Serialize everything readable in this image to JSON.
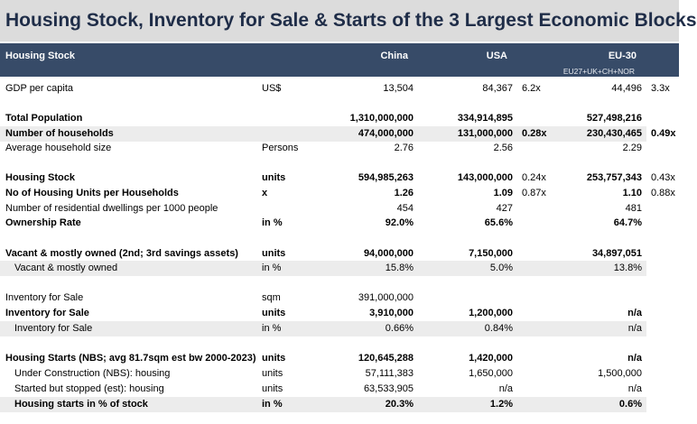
{
  "title": "Housing Stock, Inventory for Sale & Starts of the 3 Largest Economic Blocks",
  "header": {
    "label": "Housing Stock",
    "china": "China",
    "usa": "USA",
    "eu": "EU-30",
    "eu_sub": "EU27+UK+CH+NOR"
  },
  "rows": [
    {
      "label": "GDP per capita",
      "unit": "US$",
      "china": "13,504",
      "usa": "84,367",
      "usa_mult": "6.2x",
      "eu": "44,496",
      "eu_mult": "3.3x"
    },
    {
      "label": "Total Population",
      "unit": "",
      "china": "1,310,000,000",
      "usa": "334,914,895",
      "usa_mult": "",
      "eu": "527,498,216",
      "eu_mult": ""
    },
    {
      "label": "Number of households",
      "unit": "",
      "china": "474,000,000",
      "usa": "131,000,000",
      "usa_mult": "0.28x",
      "eu": "230,430,465",
      "eu_mult": "0.49x"
    },
    {
      "label": "Average household size",
      "unit": "Persons",
      "china": "2.76",
      "usa": "2.56",
      "usa_mult": "",
      "eu": "2.29",
      "eu_mult": ""
    },
    {
      "label": "Housing Stock",
      "unit": "units",
      "china": "594,985,263",
      "usa": "143,000,000",
      "usa_mult": "0.24x",
      "eu": "253,757,343",
      "eu_mult": "0.43x"
    },
    {
      "label": "No of Housing Units per Households",
      "unit": "x",
      "china": "1.26",
      "usa": "1.09",
      "usa_mult": "0.87x",
      "eu": "1.10",
      "eu_mult": "0.88x"
    },
    {
      "label": "Number of residential dwellings per 1000 people",
      "unit": "",
      "china": "454",
      "usa": "427",
      "usa_mult": "",
      "eu": "481",
      "eu_mult": ""
    },
    {
      "label": "Ownership Rate",
      "unit": "in %",
      "china": "92.0%",
      "usa": "65.6%",
      "usa_mult": "",
      "eu": "64.7%",
      "eu_mult": ""
    },
    {
      "label": "Vacant & mostly owned (2nd; 3rd savings assets)",
      "unit": "units",
      "china": "94,000,000",
      "usa": "7,150,000",
      "usa_mult": "",
      "eu": "34,897,051",
      "eu_mult": ""
    },
    {
      "label": "Vacant & mostly owned",
      "unit": "in %",
      "china": "15.8%",
      "usa": "5.0%",
      "usa_mult": "",
      "eu": "13.8%",
      "eu_mult": ""
    },
    {
      "label": "Inventory for Sale",
      "unit": "sqm",
      "china": "391,000,000",
      "usa": "",
      "usa_mult": "",
      "eu": "",
      "eu_mult": ""
    },
    {
      "label": "Inventory for Sale",
      "unit": "units",
      "china": "3,910,000",
      "usa": "1,200,000",
      "usa_mult": "",
      "eu": "n/a",
      "eu_mult": ""
    },
    {
      "label": "Inventory for Sale",
      "unit": "in %",
      "china": "0.66%",
      "usa": "0.84%",
      "usa_mult": "",
      "eu": "n/a",
      "eu_mult": ""
    },
    {
      "label": "Housing Starts (NBS; avg 81.7sqm est bw 2000-2023)",
      "unit": "units",
      "china": "120,645,288",
      "usa": "1,420,000",
      "usa_mult": "",
      "eu": "n/a",
      "eu_mult": ""
    },
    {
      "label": "Under Construction (NBS): housing",
      "unit": "units",
      "china": "57,111,383",
      "usa": "1,650,000",
      "usa_mult": "",
      "eu": "1,500,000",
      "eu_mult": ""
    },
    {
      "label": "Started but stopped (est): housing",
      "unit": "units",
      "china": "63,533,905",
      "usa": "n/a",
      "usa_mult": "",
      "eu": "n/a",
      "eu_mult": ""
    },
    {
      "label": "Housing starts in % of stock",
      "unit": "in %",
      "china": "20.3%",
      "usa": "1.2%",
      "usa_mult": "",
      "eu": "0.6%",
      "eu_mult": ""
    }
  ]
}
